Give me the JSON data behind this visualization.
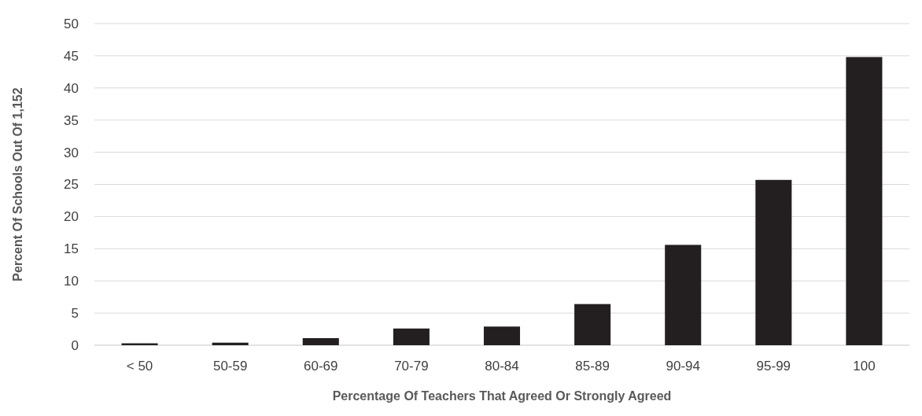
{
  "chart_data": {
    "type": "bar",
    "xlabel": "Percentage Of Teachers That Agreed Or Strongly Agreed",
    "ylabel": "Percent Of Schools Out Of 1,152",
    "categories": [
      "< 50",
      "50-59",
      "60-69",
      "70-79",
      "80-84",
      "85-89",
      "90-94",
      "95-99",
      "100"
    ],
    "values": [
      0.3,
      0.4,
      1.1,
      2.6,
      2.9,
      6.4,
      15.6,
      25.7,
      44.8
    ],
    "color": "#231f20",
    "ylim": [
      0,
      50
    ],
    "yticks": [
      0,
      5,
      10,
      15,
      20,
      25,
      30,
      35,
      40,
      45,
      50
    ],
    "grid": "y"
  }
}
